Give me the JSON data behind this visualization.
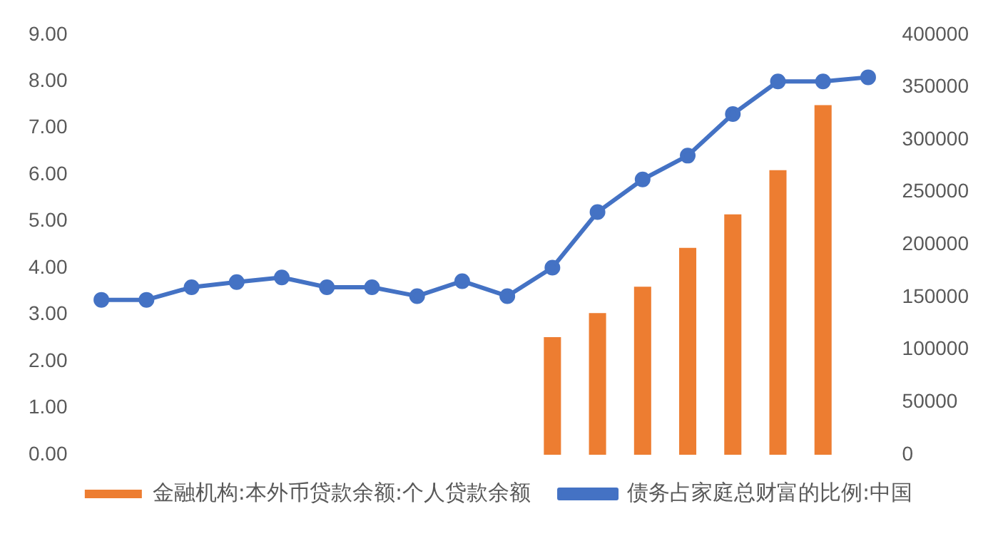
{
  "chart_data": {
    "type": "bar",
    "categories": [
      null,
      null,
      null,
      null,
      null,
      null,
      null,
      null,
      null,
      null,
      null,
      null,
      null,
      null,
      null,
      null,
      null,
      null
    ],
    "series": [
      {
        "name": "金融机构:本外币贷款余额:个人贷款余额",
        "type": "bar",
        "axis": "y2",
        "color": "#ed7d31",
        "values": [
          null,
          null,
          null,
          null,
          null,
          null,
          null,
          null,
          null,
          null,
          112000,
          135000,
          160000,
          197000,
          229000,
          271000,
          333000,
          null
        ]
      },
      {
        "name": "债务占家庭总财富的比例:中国",
        "type": "line",
        "axis": "y",
        "color": "#4472c4",
        "marker": "circle",
        "values": [
          3.32,
          3.32,
          3.59,
          3.7,
          3.8,
          3.59,
          3.59,
          3.4,
          3.72,
          3.4,
          4.01,
          5.2,
          5.9,
          6.41,
          7.3,
          8.0,
          8.0,
          8.09
        ]
      }
    ],
    "ylim": [
      0,
      9
    ],
    "yticks": [
      {
        "value": 0,
        "label": "0.00"
      },
      {
        "value": 1,
        "label": "1.00"
      },
      {
        "value": 2,
        "label": "2.00"
      },
      {
        "value": 3,
        "label": "3.00"
      },
      {
        "value": 4,
        "label": "4.00"
      },
      {
        "value": 5,
        "label": "5.00"
      },
      {
        "value": 6,
        "label": "6.00"
      },
      {
        "value": 7,
        "label": "7.00"
      },
      {
        "value": 8,
        "label": "8.00"
      },
      {
        "value": 9,
        "label": "9.00"
      }
    ],
    "y2lim": [
      0,
      400000
    ],
    "y2ticks": [
      0,
      50000,
      100000,
      150000,
      200000,
      250000,
      300000,
      350000,
      400000
    ],
    "tick_labels": "y",
    "grid": false,
    "legend": "bottom"
  }
}
